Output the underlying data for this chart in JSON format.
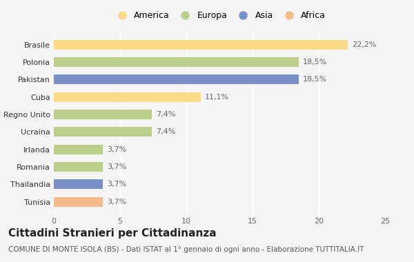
{
  "categories": [
    "Tunisia",
    "Thailandia",
    "Romania",
    "Irlanda",
    "Ucraina",
    "Regno Unito",
    "Cuba",
    "Pakistan",
    "Polonia",
    "Brasile"
  ],
  "values": [
    3.7,
    3.7,
    3.7,
    3.7,
    7.4,
    7.4,
    11.1,
    18.5,
    18.5,
    22.2
  ],
  "labels": [
    "3,7%",
    "3,7%",
    "3,7%",
    "3,7%",
    "7,4%",
    "7,4%",
    "11,1%",
    "18,5%",
    "18,5%",
    "22,2%"
  ],
  "colors": [
    "#F4BC8B",
    "#7B8FC7",
    "#BACF8A",
    "#BACF8A",
    "#BACF8A",
    "#BACF8A",
    "#FBDA88",
    "#7B8FC7",
    "#BACF8A",
    "#FBDA88"
  ],
  "legend_labels": [
    "America",
    "Europa",
    "Asia",
    "Africa"
  ],
  "legend_colors": [
    "#FBDA88",
    "#BACF8A",
    "#7B8FC7",
    "#F4BC8B"
  ],
  "title": "Cittadini Stranieri per Cittadinanza",
  "subtitle": "COMUNE DI MONTE ISOLA (BS) - Dati ISTAT al 1° gennaio di ogni anno - Elaborazione TUTTITALIA.IT",
  "xlim": [
    0,
    25
  ],
  "xticks": [
    0,
    5,
    10,
    15,
    20,
    25
  ],
  "background_color": "#f5f5f5",
  "grid_color": "#ffffff",
  "title_fontsize": 11,
  "subtitle_fontsize": 7.5,
  "label_fontsize": 8,
  "tick_fontsize": 8,
  "legend_fontsize": 9
}
